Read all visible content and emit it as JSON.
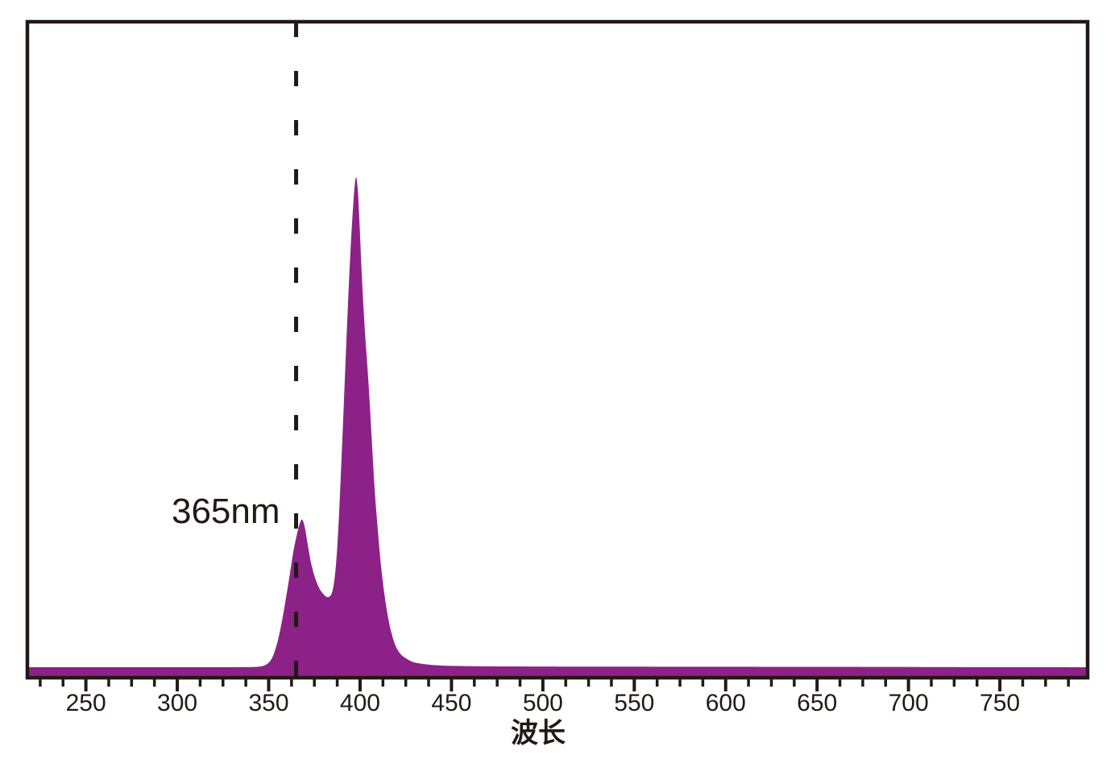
{
  "page": {
    "background_color": "#ffffff"
  },
  "chart_data": {
    "type": "area",
    "title": "",
    "xlabel": "波长",
    "ylabel": "",
    "x_range": [
      218,
      798
    ],
    "y_range": [
      0,
      1.05
    ],
    "grid": false,
    "legend": "none",
    "x_major_ticks": [
      250,
      300,
      350,
      400,
      450,
      500,
      550,
      600,
      650,
      700,
      750
    ],
    "x_minor_tick_step": 12.5,
    "annotation": {
      "text": "365nm",
      "x": 365,
      "style": "dashed-vertical-line"
    },
    "peaks": [
      {
        "wavelength": 397.9,
        "intensity": 1.0
      },
      {
        "wavelength": 368.3,
        "intensity": 0.316
      }
    ],
    "colors": {
      "fill": "#8C2287",
      "axis": "#231815",
      "text": "#231815"
    },
    "series": [
      {
        "name": "emission-spectrum",
        "points": [
          [
            218,
            0.021
          ],
          [
            280,
            0.021
          ],
          [
            330,
            0.021
          ],
          [
            342,
            0.0215
          ],
          [
            346,
            0.023
          ],
          [
            349,
            0.027
          ],
          [
            351.5,
            0.037
          ],
          [
            353.5,
            0.055
          ],
          [
            355.5,
            0.082
          ],
          [
            357.5,
            0.118
          ],
          [
            359.5,
            0.16
          ],
          [
            361.5,
            0.205
          ],
          [
            363.5,
            0.252
          ],
          [
            365.5,
            0.287
          ],
          [
            367,
            0.308
          ],
          [
            368.3,
            0.316
          ],
          [
            369.8,
            0.3
          ],
          [
            371.5,
            0.263
          ],
          [
            373.5,
            0.224
          ],
          [
            376,
            0.193
          ],
          [
            379,
            0.171
          ],
          [
            382.5,
            0.161
          ],
          [
            385,
            0.175
          ],
          [
            386.8,
            0.225
          ],
          [
            388.2,
            0.305
          ],
          [
            389.4,
            0.4
          ],
          [
            390.8,
            0.52
          ],
          [
            392.2,
            0.645
          ],
          [
            393.6,
            0.765
          ],
          [
            395,
            0.87
          ],
          [
            396.2,
            0.942
          ],
          [
            397.1,
            0.985
          ],
          [
            397.9,
            1.0
          ],
          [
            398.8,
            0.972
          ],
          [
            399.8,
            0.9
          ],
          [
            401,
            0.8
          ],
          [
            402.6,
            0.695
          ],
          [
            404.6,
            0.59
          ],
          [
            406.4,
            0.475
          ],
          [
            408,
            0.375
          ],
          [
            409.6,
            0.3
          ],
          [
            411.5,
            0.222
          ],
          [
            413.5,
            0.162
          ],
          [
            415.5,
            0.117
          ],
          [
            417.5,
            0.085
          ],
          [
            419.5,
            0.063
          ],
          [
            422,
            0.048
          ],
          [
            425,
            0.039
          ],
          [
            428.5,
            0.032
          ],
          [
            432.5,
            0.0285
          ],
          [
            438,
            0.026
          ],
          [
            446,
            0.0242
          ],
          [
            458,
            0.0232
          ],
          [
            478,
            0.0226
          ],
          [
            510,
            0.0222
          ],
          [
            560,
            0.022
          ],
          [
            620,
            0.0218
          ],
          [
            690,
            0.0215
          ],
          [
            750,
            0.0212
          ],
          [
            798,
            0.021
          ]
        ]
      }
    ]
  }
}
